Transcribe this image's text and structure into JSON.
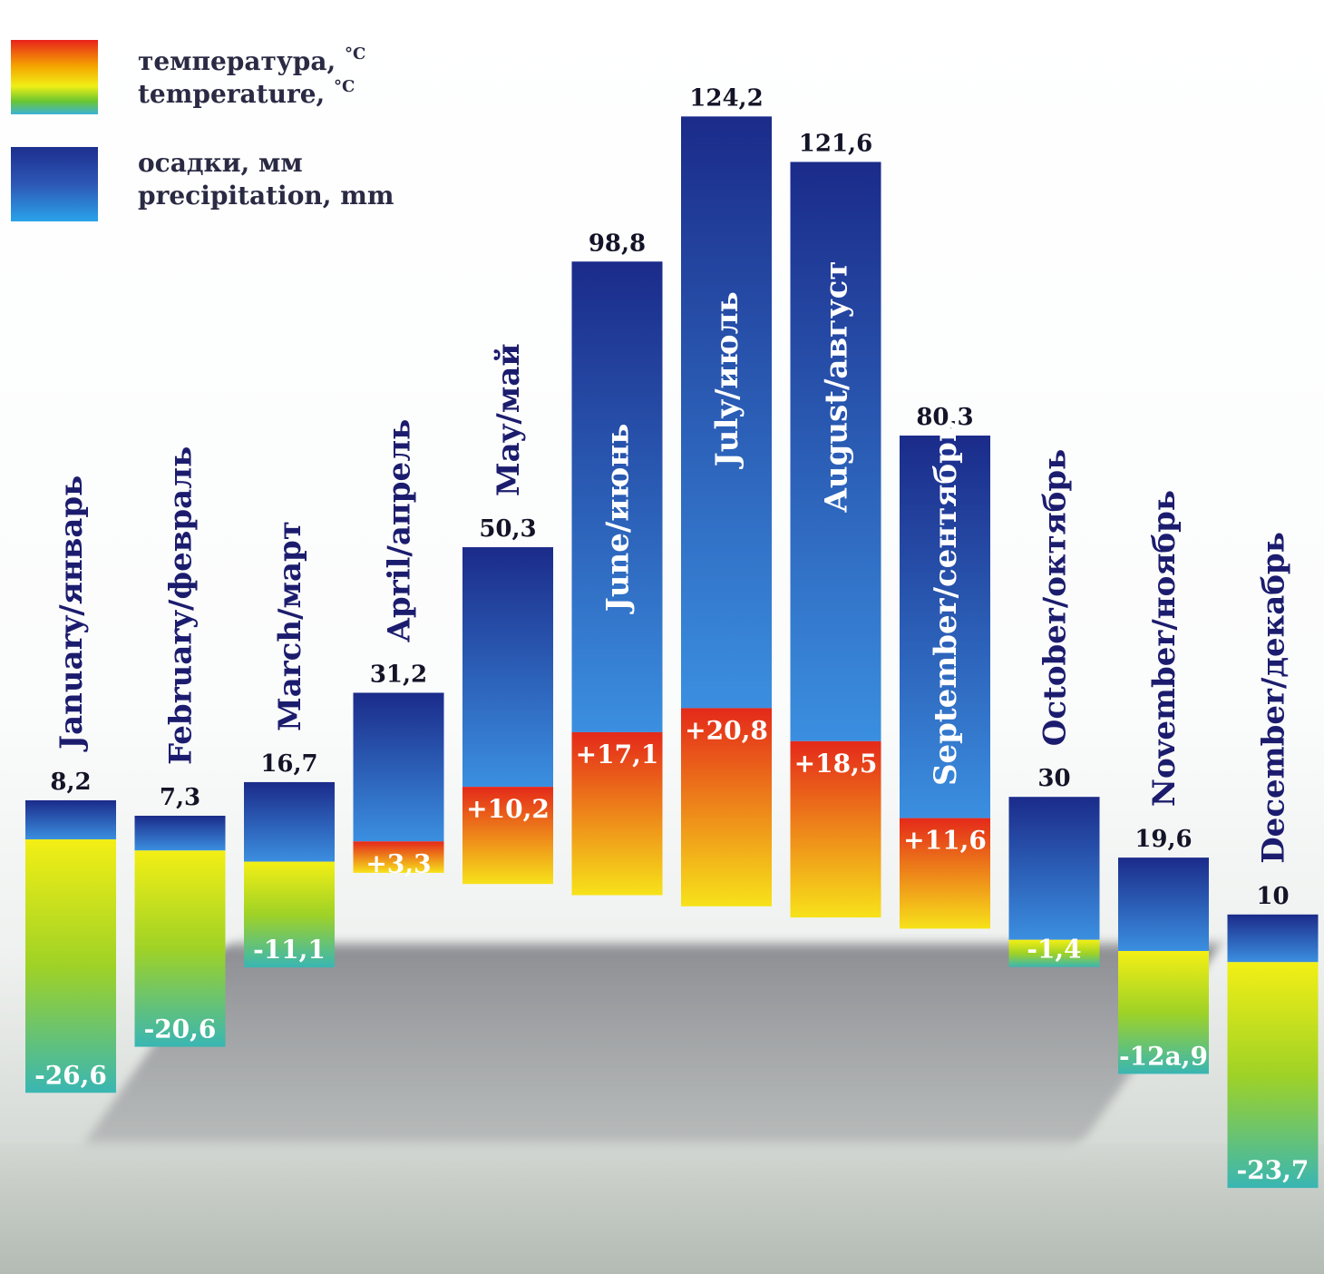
{
  "legend": {
    "temperature_ru": "температура, ",
    "temperature_en": "temperature, ",
    "temperature_unit": "°C",
    "precipitation_ru": "осадки, мм",
    "precipitation_en": "precipitation, mm"
  },
  "colors": {
    "precip_top": "#1b2b8a",
    "precip_bottom": "#3b8fe0",
    "temp_warm_top": "#e4291a",
    "temp_warm_bottom": "#f7e21a",
    "temp_cold_top": "#f3ef15",
    "temp_cold_bottom": "#39b6b3",
    "label_dark": "#1c1c6e",
    "label_light": "#ffffff"
  },
  "chart_data": {
    "type": "bar",
    "categories": [
      "January/январь",
      "February/февраль",
      "March/март",
      "April/апрель",
      "May/май",
      "June/июнь",
      "July/июль",
      "August/август",
      "September/сентябрь",
      "October/октябрь",
      "November/ноябрь",
      "December/декабрь"
    ],
    "series": [
      {
        "name": "осадки, мм / precipitation, mm",
        "values": [
          8.2,
          7.3,
          16.7,
          31.2,
          50.3,
          98.8,
          124.2,
          121.6,
          80.3,
          30,
          19.6,
          10
        ],
        "labels": [
          "8,2",
          "7,3",
          "16,7",
          "31,2",
          "50,3",
          "98,8",
          "124,2",
          "121,6",
          "80,3",
          "30",
          "19,6",
          "10"
        ]
      },
      {
        "name": "температура, °C / temperature, °C",
        "values": [
          -26.6,
          -20.6,
          -11.1,
          3.3,
          10.2,
          17.1,
          20.8,
          18.5,
          11.6,
          -1.4,
          -12.9,
          -23.7
        ],
        "labels": [
          "-26,6",
          "-20,6",
          "-11,1",
          "+3,3",
          "+10,2",
          "+17,1",
          "+20,8",
          "+18,5",
          "+11,6",
          "-1,4",
          "-12a,9",
          "-23,7"
        ]
      }
    ],
    "title": "",
    "xlabel": "",
    "ylabel": ""
  }
}
